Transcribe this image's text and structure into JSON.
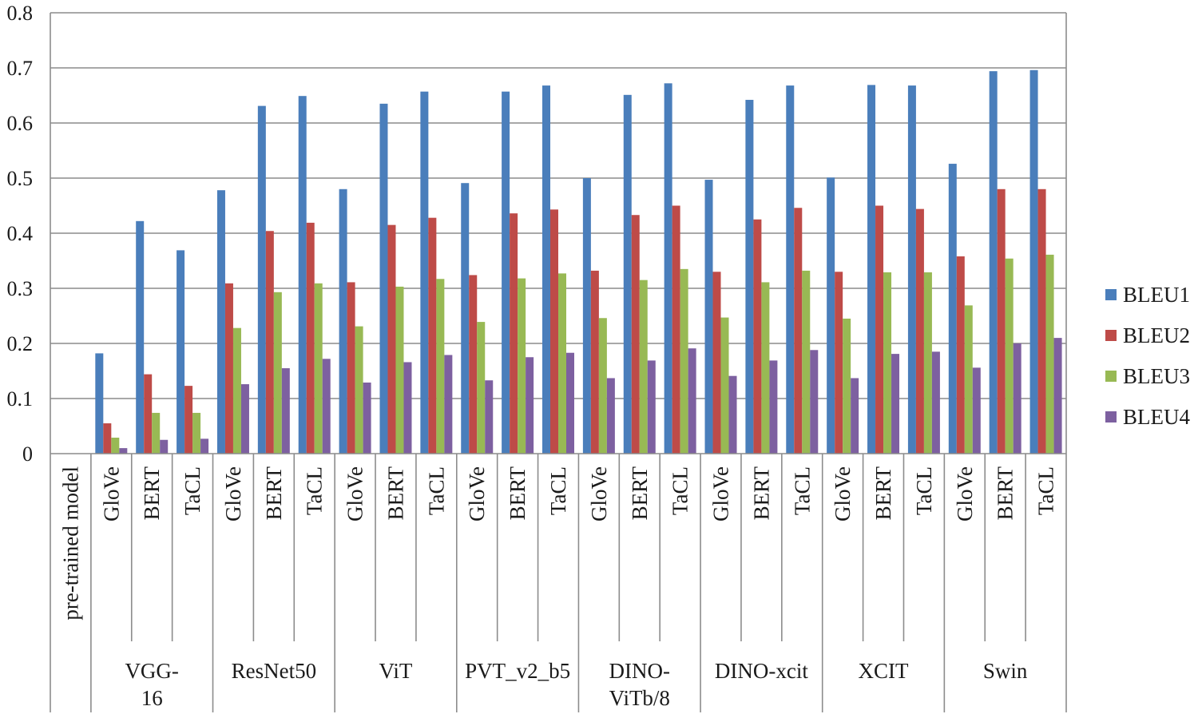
{
  "chart_data": {
    "type": "bar",
    "title": "",
    "xlabel": "",
    "ylabel": "",
    "ylim": [
      0,
      0.8
    ],
    "yticks": [
      "0",
      "0.1",
      "0.2",
      "0.3",
      "0.4",
      "0.5",
      "0.6",
      "0.7",
      "0.8"
    ],
    "grid": true,
    "legend_position": "right",
    "categories": [
      "pre-trained model",
      "GloVe",
      "BERT",
      "TaCL",
      "GloVe",
      "BERT",
      "TaCL",
      "GloVe",
      "BERT",
      "TaCL",
      "GloVe",
      "BERT",
      "TaCL",
      "GloVe",
      "BERT",
      "TaCL",
      "GloVe",
      "BERT",
      "TaCL",
      "GloVe",
      "BERT",
      "TaCL",
      "GloVe",
      "BERT",
      "TaCL"
    ],
    "groups": [
      {
        "label": "",
        "start": 0,
        "end": 1
      },
      {
        "label": "VGG-\n16",
        "start": 1,
        "end": 4
      },
      {
        "label": "ResNet50",
        "start": 4,
        "end": 7
      },
      {
        "label": "ViT",
        "start": 7,
        "end": 10
      },
      {
        "label": "PVT_v2_b5",
        "start": 10,
        "end": 13
      },
      {
        "label": "DINO-\nViTb/8",
        "start": 13,
        "end": 16
      },
      {
        "label": "DINO-xcit",
        "start": 16,
        "end": 19
      },
      {
        "label": "XCIT",
        "start": 19,
        "end": 22
      },
      {
        "label": "Swin",
        "start": 22,
        "end": 25
      }
    ],
    "series": [
      {
        "name": "BLEU1",
        "color": "#4a7ebb",
        "values": [
          null,
          0.182,
          0.422,
          0.369,
          0.478,
          0.631,
          0.649,
          0.48,
          0.635,
          0.657,
          0.491,
          0.657,
          0.668,
          0.5,
          0.651,
          0.672,
          0.497,
          0.642,
          0.668,
          0.501,
          0.669,
          0.668,
          0.526,
          0.694,
          0.696
        ]
      },
      {
        "name": "BLEU2",
        "color": "#be4b48",
        "values": [
          null,
          0.055,
          0.144,
          0.123,
          0.309,
          0.404,
          0.419,
          0.311,
          0.415,
          0.428,
          0.324,
          0.436,
          0.443,
          0.332,
          0.433,
          0.45,
          0.33,
          0.425,
          0.446,
          0.33,
          0.45,
          0.444,
          0.358,
          0.48,
          0.48
        ]
      },
      {
        "name": "BLEU3",
        "color": "#98b954",
        "values": [
          null,
          0.029,
          0.074,
          0.074,
          0.228,
          0.293,
          0.309,
          0.231,
          0.303,
          0.317,
          0.239,
          0.318,
          0.327,
          0.246,
          0.315,
          0.335,
          0.247,
          0.311,
          0.332,
          0.245,
          0.329,
          0.329,
          0.269,
          0.354,
          0.361
        ]
      },
      {
        "name": "BLEU4",
        "color": "#7d60a0",
        "values": [
          null,
          0.01,
          0.025,
          0.027,
          0.126,
          0.155,
          0.172,
          0.129,
          0.166,
          0.179,
          0.133,
          0.175,
          0.183,
          0.137,
          0.169,
          0.191,
          0.141,
          0.169,
          0.188,
          0.137,
          0.181,
          0.185,
          0.156,
          0.2,
          0.21
        ]
      }
    ]
  }
}
